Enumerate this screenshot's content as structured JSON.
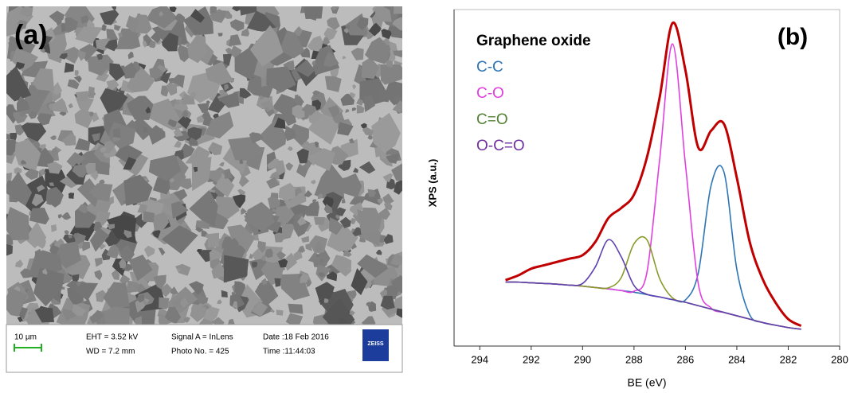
{
  "panel_a": {
    "label": "(a)",
    "scale": "10 µm",
    "eht": "EHT = 3.52 kV",
    "wd": "WD = 7.2 mm",
    "signal": "Signal A = InLens",
    "photo": "Photo No. = 425",
    "date": "Date :18 Feb 2016",
    "time": "Time :11:44:03",
    "logo": "ZEISS"
  },
  "chart_data": {
    "type": "line",
    "panel_label": "(b)",
    "xlabel": "BE (eV)",
    "ylabel": "XPS (a.u.)",
    "xlim": [
      295,
      280
    ],
    "xticks": [
      294,
      292,
      290,
      288,
      286,
      284,
      282,
      280
    ],
    "ylim": [
      0,
      100
    ],
    "x": [
      293,
      292.5,
      292,
      291.5,
      291,
      290.5,
      290,
      289.5,
      289,
      288.5,
      288,
      287.5,
      287,
      286.5,
      286,
      285.5,
      285,
      284.5,
      284,
      283.5,
      283,
      282.5,
      282,
      281.5
    ],
    "series": [
      {
        "name": "Graphene oxide",
        "color": "#c00000",
        "legend_color": "#000000",
        "values": [
          19.6,
          21,
          23,
          24,
          25,
          26,
          27,
          31,
          38,
          41,
          45,
          56,
          74,
          96,
          82,
          59,
          64,
          66,
          50,
          31,
          20,
          13,
          8,
          6
        ]
      },
      {
        "name": "C-C",
        "color": "#2e75b6",
        "legend_color": "#2e75b6",
        "values": [
          19,
          19,
          18.8,
          18.6,
          18.4,
          18.1,
          17.8,
          17.4,
          17,
          16.5,
          16,
          15.3,
          14.6,
          13.8,
          13.7,
          21.7,
          47.8,
          51.7,
          22.8,
          9.3,
          7,
          6.2,
          5.5,
          5
        ]
      },
      {
        "name": "C-O",
        "color": "#e040e0",
        "legend_color": "#e040e0",
        "values": [
          19,
          19,
          18.8,
          18.6,
          18.4,
          18.1,
          17.8,
          17.4,
          17,
          16.5,
          16.3,
          21.8,
          55.6,
          89.8,
          54,
          18.5,
          11.3,
          10,
          9,
          8,
          7,
          6.2,
          5.5,
          5
        ]
      },
      {
        "name": "C=O",
        "color": "#8a9a2a",
        "legend_color": "#548235",
        "values": [
          19,
          19,
          18.8,
          18.6,
          18.4,
          18.1,
          17.8,
          17.4,
          17.3,
          20.3,
          30.4,
          31.6,
          20,
          14.3,
          13,
          12,
          11,
          10,
          9,
          8,
          7,
          6.2,
          5.5,
          5
        ]
      },
      {
        "name": "O-C=O",
        "color": "#6040b0",
        "legend_color": "#7030a0",
        "values": [
          19,
          19,
          18.8,
          18.6,
          18.4,
          18.1,
          18.6,
          23.6,
          31.6,
          26.6,
          18,
          15.4,
          14.6,
          13.8,
          13,
          12,
          11,
          10,
          9,
          8,
          7,
          6.2,
          5.5,
          5
        ]
      }
    ]
  }
}
